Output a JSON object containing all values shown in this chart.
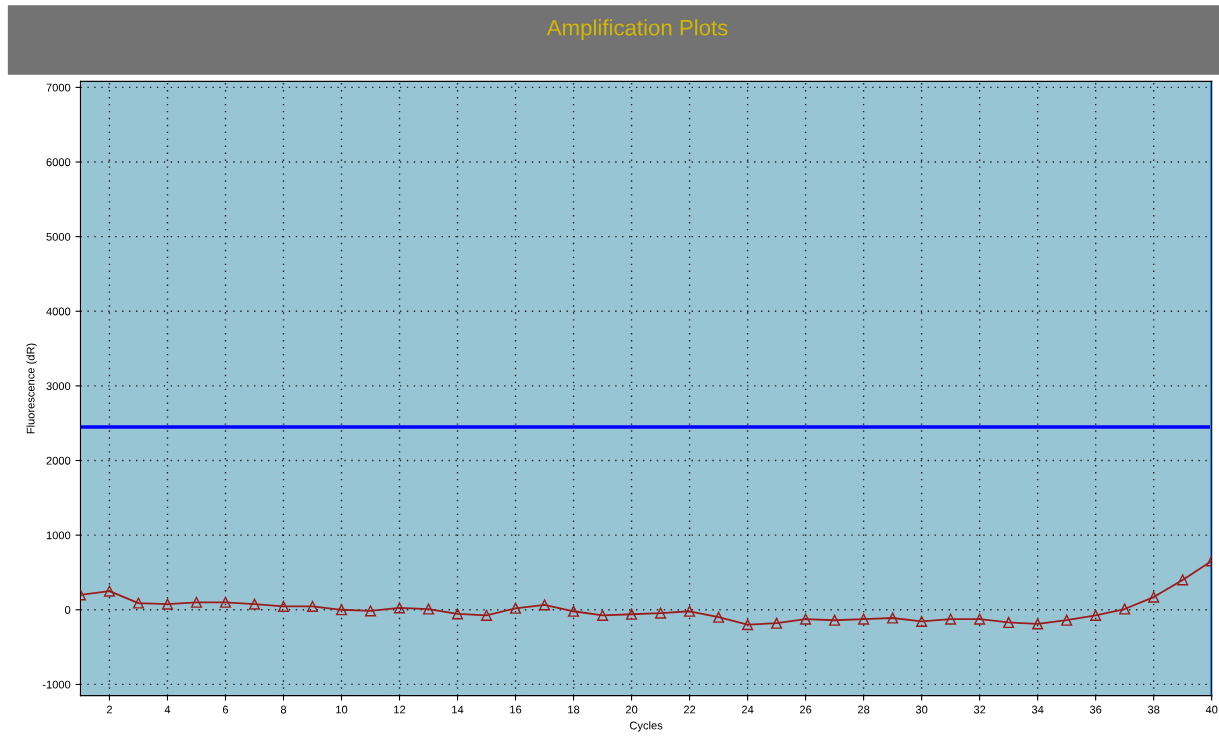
{
  "chart_data": {
    "type": "line",
    "title": "Amplification Plots",
    "xlabel": "Cycles",
    "ylabel": "Fluorescence (dR)",
    "x": [
      1,
      2,
      3,
      4,
      5,
      6,
      7,
      8,
      9,
      10,
      11,
      12,
      13,
      14,
      15,
      16,
      17,
      18,
      19,
      20,
      21,
      22,
      23,
      24,
      25,
      26,
      27,
      28,
      29,
      30,
      31,
      32,
      33,
      34,
      35,
      36,
      37,
      38,
      39,
      40
    ],
    "series": [
      {
        "color": "#9b1c1c",
        "values": [
          200,
          250,
          90,
          75,
          100,
          100,
          75,
          45,
          45,
          0,
          -15,
          25,
          10,
          -55,
          -75,
          20,
          65,
          -20,
          -75,
          -60,
          -45,
          -20,
          -100,
          -200,
          -180,
          -125,
          -140,
          -125,
          -110,
          -155,
          -125,
          -125,
          -170,
          -190,
          -140,
          -75,
          10,
          170,
          400,
          655
        ]
      }
    ],
    "xlim": [
      1,
      40
    ],
    "xticks": [
      2,
      4,
      6,
      8,
      10,
      12,
      14,
      16,
      18,
      20,
      22,
      24,
      26,
      28,
      30,
      32,
      34,
      36,
      38,
      40
    ],
    "ylim": [
      -1150,
      7080
    ],
    "yticks": [
      -1000,
      0,
      1000,
      2000,
      3000,
      4000,
      5000,
      6000,
      7000
    ],
    "ref_lines": [
      {
        "axis": "y",
        "value": 2450,
        "color": "#0000ff"
      },
      {
        "axis": "x",
        "value": 40,
        "color": "#1e90ff"
      }
    ],
    "grid": true,
    "marker": "triangle",
    "line_style": "solid"
  }
}
